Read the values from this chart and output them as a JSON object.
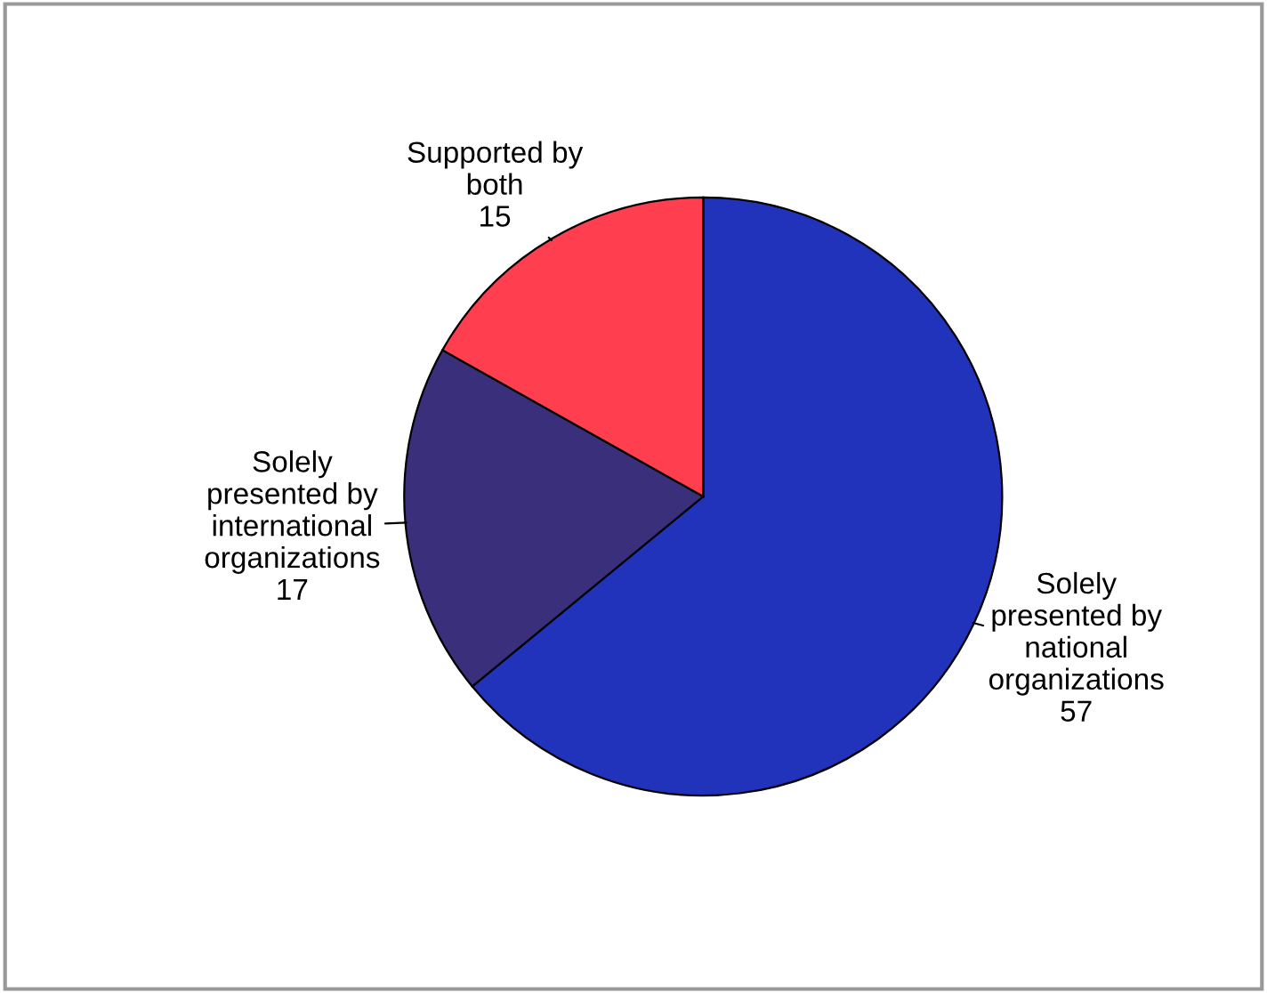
{
  "chart_data": {
    "type": "pie",
    "categories": [
      "Solely\npresented by\nnational\norganizations",
      "Solely\npresented by\ninternational\norganizations",
      "Supported by\nboth"
    ],
    "values": [
      57,
      17,
      15
    ],
    "colors": [
      "#2233bb",
      "#3a2f7a",
      "#ff3f4f"
    ],
    "data_labels": true
  }
}
